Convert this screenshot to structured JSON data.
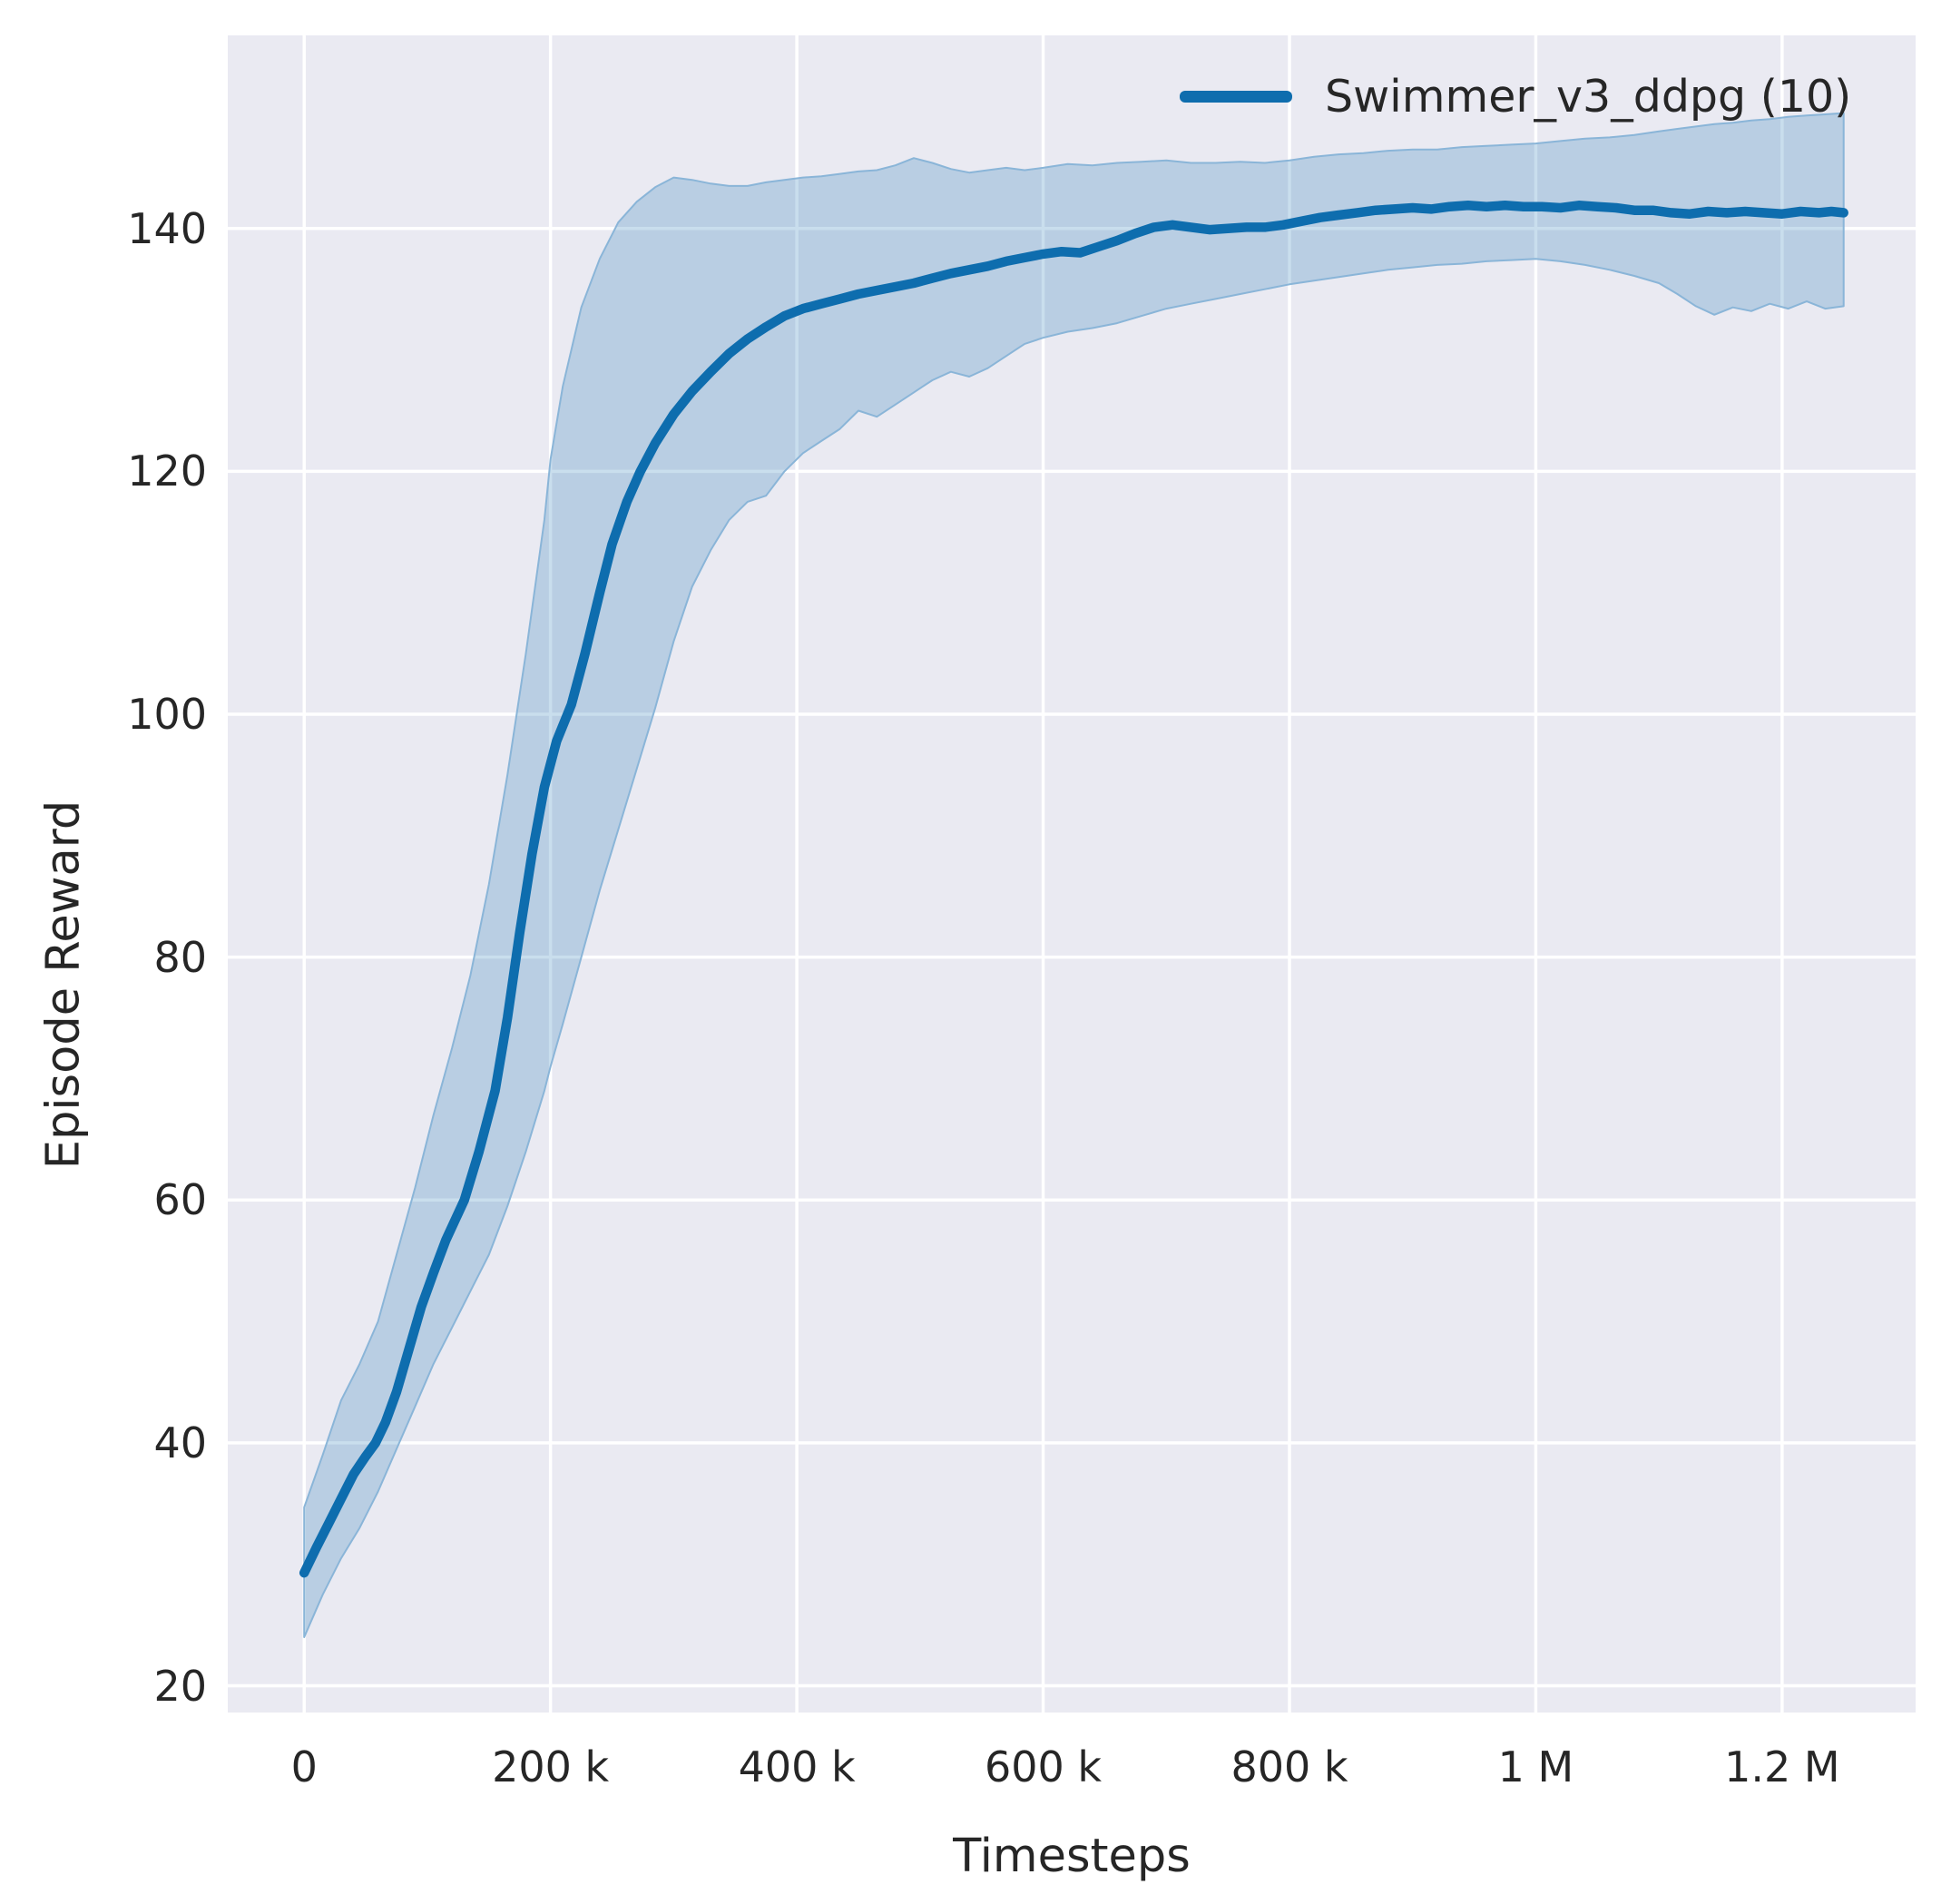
{
  "chart_data": {
    "type": "line",
    "title": "",
    "xlabel": "Timesteps",
    "ylabel": "Episode Reward",
    "grid": true,
    "legend_position": "upper right",
    "legend": [
      {
        "label": "Swimmer_v3_ddpg (10)"
      }
    ],
    "colors": {
      "line": "#0e6dae",
      "band_fill_rgba": "rgba(31,119,180,0.24)",
      "band_edge": "#8ab5d8",
      "axes_background": "#eaeaf2",
      "grid": "#ffffff",
      "text": "#262626",
      "figure_background": "#ffffff"
    },
    "xlim": [
      -62050,
      1308400
    ],
    "ylim": [
      17.8,
      155.9
    ],
    "x_ticks": [
      {
        "value": 0,
        "label": "0"
      },
      {
        "value": 200000,
        "label": "200 k"
      },
      {
        "value": 400000,
        "label": "400 k"
      },
      {
        "value": 600000,
        "label": "600 k"
      },
      {
        "value": 800000,
        "label": "800 k"
      },
      {
        "value": 1000000,
        "label": "1 M"
      },
      {
        "value": 1200000,
        "label": "1.2 M"
      }
    ],
    "y_ticks": [
      {
        "value": 20,
        "label": "20"
      },
      {
        "value": 40,
        "label": "40"
      },
      {
        "value": 60,
        "label": "60"
      },
      {
        "value": 80,
        "label": "80"
      },
      {
        "value": 100,
        "label": "100"
      },
      {
        "value": 120,
        "label": "120"
      },
      {
        "value": 140,
        "label": "140"
      }
    ],
    "series": [
      {
        "name": "Swimmer_v3_ddpg (10)",
        "x": [
          0,
          10000,
          20000,
          30000,
          40000,
          50000,
          58000,
          66000,
          75000,
          85000,
          95000,
          105000,
          115000,
          130000,
          142000,
          155000,
          165000,
          175000,
          185000,
          195000,
          205000,
          217000,
          228000,
          240000,
          250000,
          262000,
          273000,
          285000,
          300000,
          315000,
          330000,
          345000,
          360000,
          375000,
          390000,
          405000,
          420000,
          435000,
          450000,
          465000,
          480000,
          495000,
          510000,
          525000,
          540000,
          555000,
          570000,
          585000,
          600000,
          615000,
          630000,
          645000,
          660000,
          675000,
          690000,
          705000,
          720000,
          735000,
          750000,
          765000,
          780000,
          795000,
          810000,
          825000,
          840000,
          855000,
          870000,
          885000,
          900000,
          915000,
          930000,
          945000,
          960000,
          975000,
          990000,
          1005000,
          1020000,
          1035000,
          1050000,
          1065000,
          1080000,
          1095000,
          1110000,
          1125000,
          1140000,
          1155000,
          1170000,
          1185000,
          1200000,
          1215000,
          1230000,
          1240000,
          1250000
        ],
        "y": [
          29.3,
          31.4,
          33.4,
          35.4,
          37.4,
          38.9,
          40.0,
          41.7,
          44.2,
          47.7,
          51.2,
          54.0,
          56.7,
          60.0,
          64.0,
          69.0,
          75.0,
          82.0,
          88.5,
          94.0,
          97.8,
          100.8,
          105.0,
          110.0,
          114.0,
          117.5,
          120.0,
          122.3,
          124.7,
          126.6,
          128.2,
          129.7,
          130.9,
          131.9,
          132.8,
          133.4,
          133.8,
          134.2,
          134.6,
          134.9,
          135.2,
          135.5,
          135.9,
          136.3,
          136.6,
          136.9,
          137.3,
          137.6,
          137.9,
          138.1,
          138.0,
          138.5,
          139.0,
          139.6,
          140.1,
          140.3,
          140.1,
          139.9,
          140.0,
          140.1,
          140.1,
          140.3,
          140.6,
          140.9,
          141.1,
          141.3,
          141.5,
          141.6,
          141.7,
          141.6,
          141.8,
          141.9,
          141.8,
          141.9,
          141.8,
          141.8,
          141.7,
          141.9,
          141.8,
          141.7,
          141.5,
          141.5,
          141.3,
          141.2,
          141.4,
          141.3,
          141.4,
          141.3,
          141.2,
          141.4,
          141.3,
          141.4,
          141.3
        ],
        "band": {
          "x": [
            0,
            15000,
            30000,
            45000,
            60000,
            75000,
            90000,
            105000,
            120000,
            135000,
            150000,
            165000,
            180000,
            195000,
            200000,
            210000,
            225000,
            240000,
            255000,
            270000,
            285000,
            300000,
            315000,
            330000,
            345000,
            360000,
            375000,
            390000,
            405000,
            420000,
            435000,
            450000,
            465000,
            480000,
            495000,
            510000,
            525000,
            540000,
            555000,
            570000,
            585000,
            600000,
            620000,
            640000,
            660000,
            680000,
            700000,
            720000,
            740000,
            760000,
            780000,
            800000,
            820000,
            840000,
            860000,
            880000,
            900000,
            920000,
            940000,
            960000,
            980000,
            1000000,
            1020000,
            1040000,
            1060000,
            1080000,
            1100000,
            1115000,
            1130000,
            1145000,
            1160000,
            1175000,
            1190000,
            1205000,
            1220000,
            1235000,
            1250000
          ],
          "lower": [
            24.0,
            27.5,
            30.5,
            33.0,
            36.0,
            39.5,
            43.0,
            46.5,
            49.5,
            52.5,
            55.5,
            59.5,
            64.0,
            69.0,
            71.0,
            74.5,
            80.0,
            85.5,
            90.5,
            95.5,
            100.5,
            106.0,
            110.5,
            113.5,
            116.0,
            117.5,
            118.0,
            120.0,
            121.5,
            122.5,
            123.5,
            125.0,
            124.5,
            125.5,
            126.5,
            127.5,
            128.2,
            127.8,
            128.5,
            129.5,
            130.5,
            131.0,
            131.5,
            131.8,
            132.2,
            132.8,
            133.4,
            133.8,
            134.2,
            134.6,
            135.0,
            135.4,
            135.7,
            136.0,
            136.3,
            136.6,
            136.8,
            137.0,
            137.1,
            137.3,
            137.4,
            137.5,
            137.3,
            137.0,
            136.6,
            136.1,
            135.5,
            134.6,
            133.6,
            132.9,
            133.5,
            133.2,
            133.8,
            133.4,
            134.0,
            133.4,
            133.6
          ],
          "upper": [
            34.7,
            39.0,
            43.5,
            46.5,
            50.0,
            55.5,
            61.0,
            67.0,
            72.5,
            78.5,
            86.0,
            95.0,
            105.0,
            116.0,
            121.0,
            127.0,
            133.5,
            137.5,
            140.5,
            142.2,
            143.4,
            144.2,
            144.0,
            143.7,
            143.5,
            143.5,
            143.8,
            144.0,
            144.2,
            144.3,
            144.5,
            144.7,
            144.8,
            145.2,
            145.8,
            145.4,
            144.9,
            144.6,
            144.8,
            145.0,
            144.8,
            145.0,
            145.3,
            145.2,
            145.4,
            145.5,
            145.6,
            145.4,
            145.4,
            145.5,
            145.4,
            145.6,
            145.9,
            146.1,
            146.2,
            146.4,
            146.5,
            146.5,
            146.7,
            146.8,
            146.9,
            147.0,
            147.2,
            147.4,
            147.5,
            147.7,
            148.0,
            148.2,
            148.4,
            148.6,
            148.7,
            148.9,
            149.0,
            149.2,
            149.3,
            149.4,
            149.5
          ]
        }
      }
    ]
  }
}
